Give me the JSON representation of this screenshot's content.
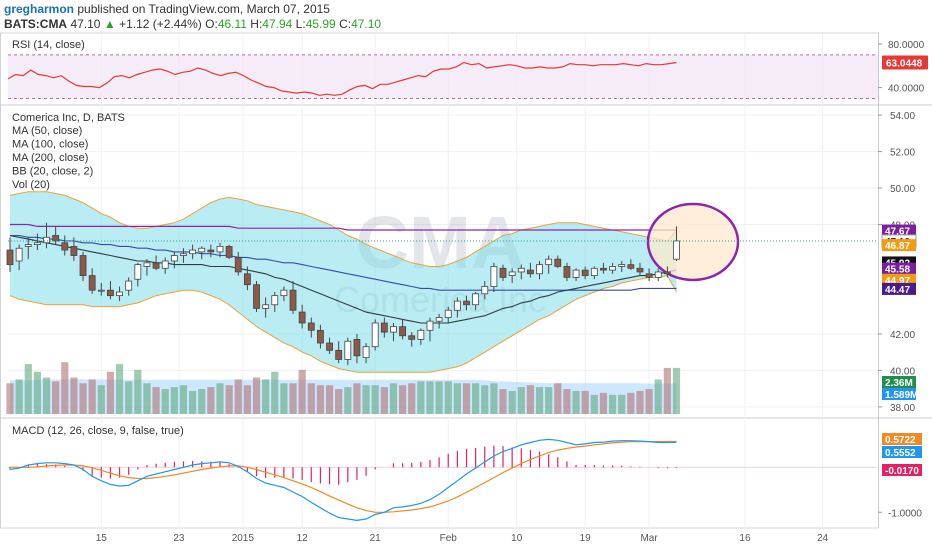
{
  "header": {
    "author": "gregharmon",
    "published": "published on TradingView.com, March 07, 2015",
    "symbol": "BATS:CMA",
    "last": "47.10",
    "arrow": "▲",
    "change": "+1.12 (+2.44%)",
    "open_label": "O:",
    "open": "46.11",
    "high_label": "H:",
    "high": "47.94",
    "low_label": "L:",
    "low": "45.99",
    "close_label": "C:",
    "close": "47.10"
  },
  "chart_data": {
    "type": "candlestick",
    "watermark": {
      "symbol": "CMA",
      "name": "Comerica Inc"
    },
    "x_ticks": [
      "15",
      "23",
      "2015",
      "12",
      "21",
      "Feb",
      "10",
      "19",
      "Mar",
      "16",
      "24"
    ],
    "rsi": {
      "title": "RSI (14, close)",
      "ylim": [
        25,
        90
      ],
      "ticks": [
        "80.0000",
        "40.0000"
      ],
      "band": [
        70,
        30
      ],
      "last_label": "63.0448",
      "values": [
        48,
        52,
        51,
        56,
        52,
        51,
        49,
        51,
        46,
        42,
        41,
        41,
        40,
        44,
        50,
        51,
        49,
        52,
        54,
        56,
        57,
        55,
        52,
        54,
        55,
        58,
        56,
        53,
        51,
        53,
        54,
        51,
        47,
        44,
        41,
        40,
        37,
        36,
        35,
        36,
        35,
        33,
        34,
        33,
        34,
        38,
        41,
        42,
        39,
        43,
        43,
        45,
        47,
        49,
        51,
        50,
        55,
        57,
        57,
        59,
        63,
        61,
        62,
        58,
        59,
        60,
        61,
        60,
        58,
        58,
        59,
        58,
        58,
        59,
        62,
        61,
        61,
        60,
        61,
        61,
        61,
        62,
        61,
        60,
        62,
        61,
        61,
        62,
        63
      ]
    },
    "price": {
      "title": "Comerica Inc, D, BATS",
      "indicators": [
        "MA (50, close)",
        "MA (100, close)",
        "MA (200, close)",
        "BB (20, close, 2)",
        "Vol (20)"
      ],
      "ylim": [
        37.5,
        54.5
      ],
      "ticks": [
        "54.00",
        "52.00",
        "50.00",
        "48.00",
        "42.00",
        "40.00",
        "38.00"
      ],
      "ohlc": [
        [
          46.6,
          47.3,
          45.4,
          45.8
        ],
        [
          46.0,
          46.9,
          45.5,
          46.7
        ],
        [
          46.8,
          47.3,
          46.1,
          46.9
        ],
        [
          46.9,
          47.5,
          46.6,
          47.0
        ],
        [
          47.0,
          48.1,
          46.7,
          47.3
        ],
        [
          47.4,
          47.9,
          46.9,
          47.1
        ],
        [
          47.0,
          47.4,
          46.3,
          46.6
        ],
        [
          46.8,
          47.3,
          46.0,
          46.3
        ],
        [
          46.3,
          46.5,
          44.9,
          45.2
        ],
        [
          45.2,
          45.6,
          44.2,
          44.4
        ],
        [
          44.4,
          44.8,
          44.1,
          44.4
        ],
        [
          44.4,
          44.9,
          43.9,
          44.1
        ],
        [
          44.1,
          44.6,
          43.8,
          44.3
        ],
        [
          44.4,
          45.1,
          44.1,
          44.9
        ],
        [
          45.0,
          45.9,
          44.6,
          45.8
        ],
        [
          45.7,
          46.1,
          45.2,
          45.9
        ],
        [
          45.9,
          46.3,
          45.5,
          45.6
        ],
        [
          45.6,
          46.2,
          45.3,
          46.0
        ],
        [
          46.0,
          46.5,
          45.6,
          46.3
        ],
        [
          46.3,
          46.7,
          45.9,
          46.4
        ],
        [
          46.4,
          46.9,
          46.1,
          46.6
        ],
        [
          46.5,
          46.8,
          46.1,
          46.7
        ],
        [
          46.6,
          46.9,
          46.2,
          46.5
        ],
        [
          46.5,
          47.0,
          46.2,
          46.8
        ],
        [
          46.8,
          46.9,
          46.1,
          46.2
        ],
        [
          46.2,
          46.5,
          45.2,
          45.4
        ],
        [
          45.3,
          45.7,
          44.4,
          44.7
        ],
        [
          44.7,
          44.9,
          43.2,
          43.4
        ],
        [
          43.4,
          44.0,
          42.9,
          43.6
        ],
        [
          43.6,
          44.3,
          43.2,
          44.1
        ],
        [
          44.1,
          44.6,
          43.8,
          44.4
        ],
        [
          44.4,
          44.9,
          43.1,
          43.3
        ],
        [
          43.2,
          43.6,
          42.3,
          42.6
        ],
        [
          42.6,
          42.9,
          41.8,
          42.2
        ],
        [
          42.2,
          42.5,
          41.2,
          41.5
        ],
        [
          41.5,
          41.8,
          40.9,
          41.1
        ],
        [
          41.1,
          41.6,
          40.4,
          40.6
        ],
        [
          40.6,
          41.8,
          40.3,
          41.6
        ],
        [
          41.7,
          42.0,
          40.4,
          40.8
        ],
        [
          40.7,
          41.5,
          40.4,
          41.3
        ],
        [
          41.3,
          42.8,
          41.1,
          42.6
        ],
        [
          42.6,
          42.9,
          41.8,
          42.1
        ],
        [
          42.1,
          42.6,
          41.6,
          42.4
        ],
        [
          42.4,
          42.8,
          41.7,
          41.9
        ],
        [
          41.9,
          42.1,
          41.3,
          41.7
        ],
        [
          41.7,
          42.3,
          41.4,
          42.2
        ],
        [
          42.2,
          42.9,
          41.6,
          42.7
        ],
        [
          42.7,
          43.1,
          42.3,
          42.9
        ],
        [
          42.9,
          43.5,
          42.6,
          43.3
        ],
        [
          43.3,
          44.0,
          42.9,
          43.8
        ],
        [
          43.8,
          44.1,
          43.3,
          43.6
        ],
        [
          43.6,
          44.3,
          43.3,
          44.2
        ],
        [
          44.2,
          44.9,
          43.9,
          44.6
        ],
        [
          44.6,
          45.9,
          44.3,
          45.7
        ],
        [
          45.6,
          45.8,
          44.9,
          45.1
        ],
        [
          45.2,
          45.6,
          44.8,
          45.4
        ],
        [
          45.4,
          45.8,
          45.0,
          45.6
        ],
        [
          45.5,
          45.9,
          45.1,
          45.3
        ],
        [
          45.3,
          46.0,
          45.0,
          45.8
        ],
        [
          45.8,
          46.3,
          45.3,
          46.1
        ],
        [
          46.1,
          46.3,
          45.6,
          45.7
        ],
        [
          45.7,
          45.9,
          44.9,
          45.1
        ],
        [
          45.1,
          45.6,
          44.9,
          45.5
        ],
        [
          45.5,
          45.7,
          45.0,
          45.2
        ],
        [
          45.2,
          45.7,
          45.0,
          45.6
        ],
        [
          45.6,
          45.9,
          45.3,
          45.5
        ],
        [
          45.5,
          45.9,
          45.3,
          45.7
        ],
        [
          45.7,
          46.0,
          45.4,
          45.8
        ],
        [
          45.8,
          46.1,
          45.5,
          45.6
        ],
        [
          45.6,
          45.9,
          45.2,
          45.4
        ],
        [
          45.3,
          45.6,
          44.9,
          45.1
        ],
        [
          45.1,
          45.6,
          44.9,
          45.4
        ],
        [
          45.4,
          45.7,
          45.1,
          45.3
        ],
        [
          46.1,
          47.9,
          46.0,
          47.1
        ]
      ],
      "ma50": [
        47.4,
        47.3,
        47.2,
        47.1,
        47.0,
        46.9,
        46.8,
        46.7,
        46.6,
        46.5,
        46.4,
        46.3,
        46.2,
        46.1,
        46.0,
        46.0,
        45.9,
        45.9,
        45.8,
        45.8,
        45.8,
        45.8,
        45.7,
        45.7,
        45.7,
        45.6,
        45.5,
        45.4,
        45.3,
        45.1,
        45.0,
        44.8,
        44.6,
        44.4,
        44.2,
        44.0,
        43.8,
        43.6,
        43.4,
        43.2,
        43.1,
        43.0,
        42.9,
        42.8,
        42.7,
        42.6,
        42.6,
        42.6,
        42.6,
        42.7,
        42.8,
        42.9,
        43.0,
        43.2,
        43.4,
        43.5,
        43.7,
        43.8,
        44.0,
        44.1,
        44.3,
        44.4,
        44.5,
        44.6,
        44.7,
        44.8,
        44.9,
        45.0,
        45.1,
        45.2,
        45.2,
        45.3,
        45.4,
        45.5
      ],
      "ma100": [
        47.4,
        47.4,
        47.3,
        47.3,
        47.2,
        47.2,
        47.1,
        47.1,
        47.0,
        47.0,
        46.9,
        46.9,
        46.8,
        46.8,
        46.7,
        46.7,
        46.6,
        46.6,
        46.5,
        46.5,
        46.5,
        46.4,
        46.4,
        46.3,
        46.3,
        46.2,
        46.2,
        46.1,
        46.1,
        46.0,
        45.9,
        45.9,
        45.8,
        45.7,
        45.6,
        45.5,
        45.4,
        45.3,
        45.2,
        45.1,
        45.0,
        44.9,
        44.8,
        44.7,
        44.6,
        44.5,
        44.5,
        44.4,
        44.4,
        44.4,
        44.4,
        44.4,
        44.4,
        44.4,
        44.4,
        44.4,
        44.4,
        44.4,
        44.4,
        44.4,
        44.4,
        44.4,
        44.4,
        44.4,
        44.4,
        44.4,
        44.4,
        44.4,
        44.4,
        44.5,
        44.5,
        44.5,
        44.5,
        44.5
      ],
      "ma200": [
        48.0,
        48.0,
        48.0,
        47.9,
        47.9,
        47.9,
        47.9,
        47.9,
        47.9,
        47.9,
        47.9,
        47.9,
        47.9,
        47.9,
        47.9,
        47.9,
        47.9,
        47.9,
        47.9,
        47.9,
        47.9,
        47.9,
        47.9,
        47.9,
        47.9,
        47.8,
        47.8,
        47.8,
        47.8,
        47.8,
        47.8,
        47.8,
        47.8,
        47.8,
        47.8,
        47.8,
        47.8,
        47.7,
        47.7,
        47.7,
        47.7,
        47.7,
        47.7,
        47.7,
        47.7,
        47.7,
        47.7,
        47.7,
        47.7,
        47.7,
        47.7,
        47.7,
        47.7,
        47.7,
        47.7,
        47.7,
        47.7,
        47.7,
        47.7,
        47.7,
        47.7,
        47.7,
        47.7,
        47.7,
        47.7,
        47.7,
        47.7,
        47.7,
        47.7,
        47.7,
        47.7,
        47.7,
        47.7,
        47.7
      ],
      "bb_upper": [
        49.6,
        49.7,
        49.8,
        49.8,
        49.8,
        49.7,
        49.6,
        49.4,
        49.2,
        48.9,
        48.6,
        48.4,
        48.1,
        47.9,
        47.8,
        47.8,
        47.9,
        48.0,
        48.1,
        48.3,
        48.6,
        48.9,
        49.2,
        49.4,
        49.5,
        49.4,
        49.3,
        49.1,
        49.0,
        48.9,
        48.8,
        48.7,
        48.6,
        48.4,
        48.2,
        48.0,
        47.7,
        47.4,
        47.2,
        46.9,
        46.7,
        46.5,
        46.3,
        46.1,
        45.9,
        45.8,
        45.7,
        45.7,
        45.8,
        46.0,
        46.2,
        46.5,
        46.8,
        47.1,
        47.4,
        47.5,
        47.7,
        47.8,
        47.9,
        48.0,
        48.1,
        48.1,
        48.1,
        48.0,
        47.9,
        47.8,
        47.7,
        47.6,
        47.5,
        47.4,
        47.3,
        47.2,
        47.1,
        47.7
      ],
      "bb_lower": [
        44.1,
        43.9,
        43.8,
        43.7,
        43.6,
        43.6,
        43.6,
        43.6,
        43.6,
        43.5,
        43.5,
        43.5,
        43.5,
        43.6,
        43.7,
        43.9,
        44.1,
        44.2,
        44.3,
        44.4,
        44.4,
        44.3,
        44.1,
        43.9,
        43.6,
        43.2,
        42.8,
        42.4,
        42.1,
        41.8,
        41.5,
        41.3,
        41.0,
        40.8,
        40.5,
        40.3,
        40.1,
        40.0,
        39.9,
        39.9,
        39.9,
        39.9,
        39.9,
        39.9,
        39.9,
        39.9,
        39.9,
        40.0,
        40.1,
        40.2,
        40.4,
        40.7,
        41.0,
        41.3,
        41.6,
        41.9,
        42.2,
        42.5,
        42.8,
        43.0,
        43.3,
        43.6,
        43.9,
        44.1,
        44.3,
        44.5,
        44.6,
        44.8,
        44.9,
        45.0,
        45.1,
        45.1,
        45.2,
        44.3
      ],
      "volume": [
        1.6,
        1.8,
        2.6,
        2.2,
        1.9,
        1.7,
        2.7,
        1.9,
        1.6,
        1.8,
        1.5,
        2.2,
        2.6,
        1.7,
        2.3,
        1.6,
        1.4,
        1.3,
        1.4,
        1.5,
        1.2,
        1.3,
        1.4,
        1.6,
        1.5,
        1.8,
        1.5,
        1.9,
        1.8,
        2.2,
        1.6,
        1.6,
        2.3,
        1.6,
        1.5,
        1.5,
        1.3,
        1.4,
        1.6,
        1.5,
        1.5,
        1.4,
        1.6,
        1.5,
        1.6,
        1.7,
        1.7,
        1.7,
        1.7,
        1.6,
        1.6,
        1.6,
        1.5,
        1.6,
        1.3,
        1.2,
        1.4,
        1.5,
        1.4,
        1.4,
        1.6,
        1.3,
        1.2,
        1.2,
        1.0,
        1.1,
        1.0,
        1.0,
        1.1,
        1.2,
        1.3,
        1.8,
        2.4,
        2.4
      ],
      "vol_ma": [
        1.75,
        1.75,
        1.76,
        1.78,
        1.79,
        1.8,
        1.8,
        1.8,
        1.8,
        1.8,
        1.8,
        1.79,
        1.79,
        1.78,
        1.78,
        1.78,
        1.78,
        1.78,
        1.78,
        1.78,
        1.78,
        1.78,
        1.78,
        1.78,
        1.78,
        1.78,
        1.78,
        1.78,
        1.78,
        1.78,
        1.78,
        1.78,
        1.78,
        1.78,
        1.78,
        1.78,
        1.78,
        1.78,
        1.78,
        1.78,
        1.78,
        1.78,
        1.78,
        1.78,
        1.78,
        1.78,
        1.78,
        1.78,
        1.78,
        1.78,
        1.78,
        1.78,
        1.75,
        1.72,
        1.7,
        1.68,
        1.66,
        1.64,
        1.62,
        1.6,
        1.6,
        1.6,
        1.6,
        1.6,
        1.6,
        1.6,
        1.6,
        1.6,
        1.6,
        1.6,
        1.59,
        1.59,
        1.589,
        1.589
      ],
      "vol_scale": 5.0,
      "tags": [
        {
          "label": "47.67",
          "value": 47.67,
          "color": "#7b1fa2"
        },
        {
          "label": "47.10",
          "value": 47.1,
          "color": "#ffffff"
        },
        {
          "label": "46.87",
          "value": 46.87,
          "color": "#f39c12"
        },
        {
          "label": "45.92",
          "value": 45.92,
          "color": "#111111"
        },
        {
          "label": "45.58",
          "value": 45.58,
          "color": "#7b1fa2"
        },
        {
          "label": "44.97",
          "value": 44.97,
          "color": "#f39c12"
        },
        {
          "label": "44.47",
          "value": 44.47,
          "color": "#4a1b8c"
        },
        {
          "label": "2.36M",
          "value": null,
          "color": "#1f8f4a"
        },
        {
          "label": "1.589M",
          "value": null,
          "color": "#2196f3"
        }
      ]
    },
    "macd": {
      "title": "MACD (12, 26, close, 9, false, true)",
      "ylim": [
        -1.35,
        1.05
      ],
      "ticks": [
        "-1.0000"
      ],
      "tags": [
        {
          "label": "0.5722",
          "value": 0.5722,
          "color": "#f08a24"
        },
        {
          "label": "0.5552",
          "value": 0.5552,
          "color": "#2196f3"
        },
        {
          "label": "-0.0170",
          "value": -0.017,
          "color": "#e91e63"
        }
      ],
      "macd": [
        -0.05,
        -0.02,
        0.05,
        0.08,
        0.1,
        0.1,
        0.08,
        0.05,
        -0.05,
        -0.2,
        -0.3,
        -0.38,
        -0.42,
        -0.4,
        -0.3,
        -0.2,
        -0.15,
        -0.1,
        -0.05,
        0.0,
        0.05,
        0.08,
        0.1,
        0.12,
        0.1,
        0.02,
        -0.1,
        -0.25,
        -0.35,
        -0.4,
        -0.45,
        -0.55,
        -0.65,
        -0.78,
        -0.9,
        -1.02,
        -1.12,
        -1.15,
        -1.18,
        -1.15,
        -1.05,
        -1.0,
        -0.9,
        -0.88,
        -0.85,
        -0.8,
        -0.72,
        -0.6,
        -0.45,
        -0.3,
        -0.15,
        -0.02,
        0.12,
        0.25,
        0.35,
        0.42,
        0.5,
        0.55,
        0.6,
        0.62,
        0.6,
        0.55,
        0.5,
        0.52,
        0.55,
        0.56,
        0.58,
        0.59,
        0.59,
        0.58,
        0.57,
        0.55,
        0.55,
        0.555
      ],
      "signal": [
        0.0,
        0.0,
        0.0,
        0.01,
        0.03,
        0.04,
        0.05,
        0.05,
        0.03,
        -0.01,
        -0.07,
        -0.13,
        -0.19,
        -0.23,
        -0.25,
        -0.25,
        -0.23,
        -0.2,
        -0.17,
        -0.13,
        -0.09,
        -0.05,
        -0.02,
        0.01,
        0.03,
        0.03,
        0.0,
        -0.05,
        -0.11,
        -0.17,
        -0.23,
        -0.3,
        -0.37,
        -0.45,
        -0.54,
        -0.64,
        -0.73,
        -0.82,
        -0.9,
        -0.96,
        -1.0,
        -1.0,
        -0.99,
        -0.97,
        -0.95,
        -0.92,
        -0.88,
        -0.82,
        -0.75,
        -0.66,
        -0.56,
        -0.45,
        -0.34,
        -0.23,
        -0.12,
        -0.02,
        0.08,
        0.17,
        0.25,
        0.33,
        0.38,
        0.42,
        0.45,
        0.47,
        0.5,
        0.52,
        0.54,
        0.56,
        0.57,
        0.57,
        0.57,
        0.57,
        0.572,
        0.572
      ]
    },
    "annotation": {
      "type": "circle",
      "color": "#8e24aa",
      "fill": "#ffe8cc"
    }
  }
}
